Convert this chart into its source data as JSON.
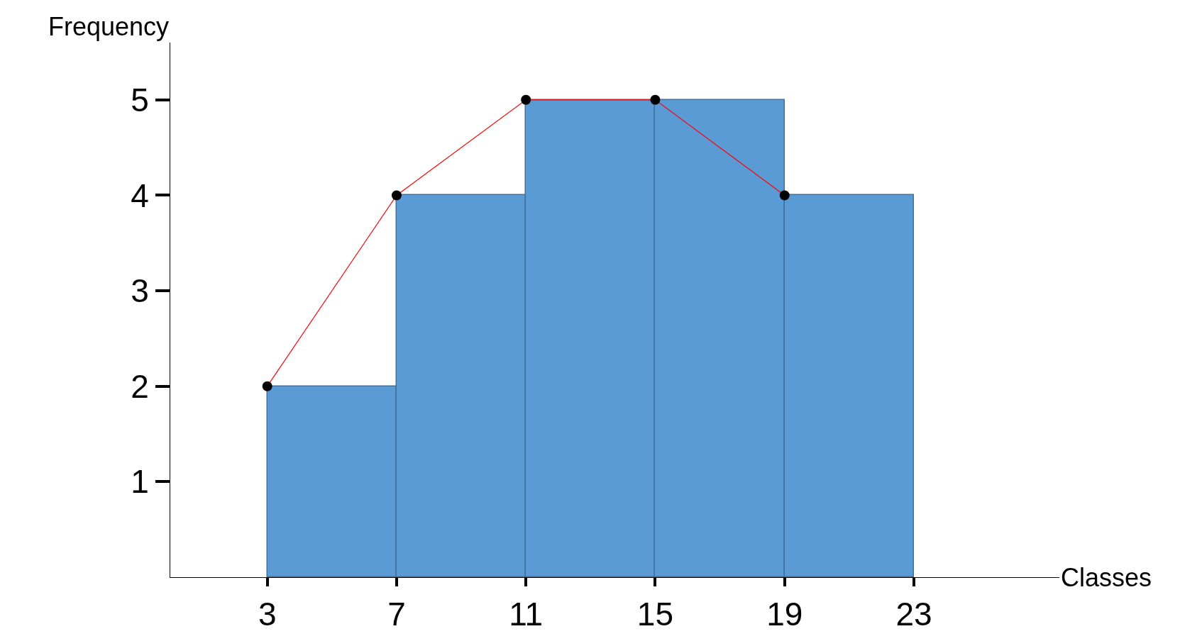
{
  "chart_data": {
    "type": "histogram",
    "xlabel": "Classes",
    "ylabel": "Frequency",
    "bins": [
      3,
      7,
      11,
      15,
      19,
      23
    ],
    "values": [
      2,
      4,
      5,
      5,
      4
    ],
    "color": "#5b9bd5",
    "series": [
      {
        "type": "line",
        "x": [
          3,
          7,
          11,
          15,
          19
        ],
        "values": [
          2,
          4,
          5,
          5,
          4
        ],
        "color": "#ff0000",
        "marker": "circle"
      }
    ],
    "xlim": [
      0,
      27.5
    ],
    "ylim": [
      0,
      5.6
    ],
    "xticks": [
      3,
      7,
      11,
      15,
      19,
      23
    ],
    "yticks": [
      1,
      2,
      3,
      4,
      5
    ]
  }
}
